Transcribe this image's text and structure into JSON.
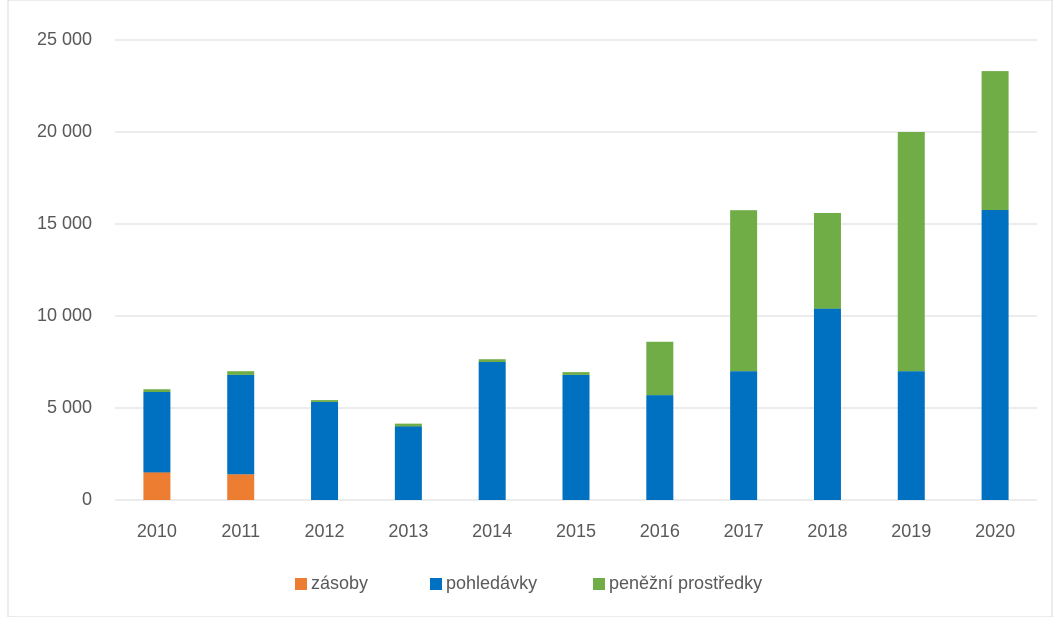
{
  "chart_data": {
    "type": "stacked_bar",
    "categories": [
      "2010",
      "2011",
      "2012",
      "2013",
      "2014",
      "2015",
      "2016",
      "2017",
      "2018",
      "2019",
      "2020"
    ],
    "series": [
      {
        "name": "zásoby",
        "color": "#ed7d31",
        "values": [
          1500,
          1400,
          0,
          0,
          0,
          0,
          0,
          0,
          0,
          0,
          0
        ]
      },
      {
        "name": "pohledávky",
        "color": "#0070c0",
        "values": [
          4370,
          5400,
          5330,
          4000,
          7500,
          6800,
          5700,
          7000,
          10400,
          7000,
          15760
        ]
      },
      {
        "name": "peněžní prostředky",
        "color": "#70ad47",
        "values": [
          150,
          200,
          100,
          150,
          150,
          150,
          2900,
          8750,
          5200,
          13000,
          7550
        ]
      }
    ],
    "ylim": [
      0,
      25000
    ],
    "yticks": [
      {
        "value": 0,
        "label": "0"
      },
      {
        "value": 5000,
        "label": "5 000"
      },
      {
        "value": 10000,
        "label": "10 000"
      },
      {
        "value": 15000,
        "label": "15 000"
      },
      {
        "value": 20000,
        "label": "20 000"
      },
      {
        "value": 25000,
        "label": "25 000"
      }
    ],
    "grid": true,
    "legend": "bottom"
  }
}
